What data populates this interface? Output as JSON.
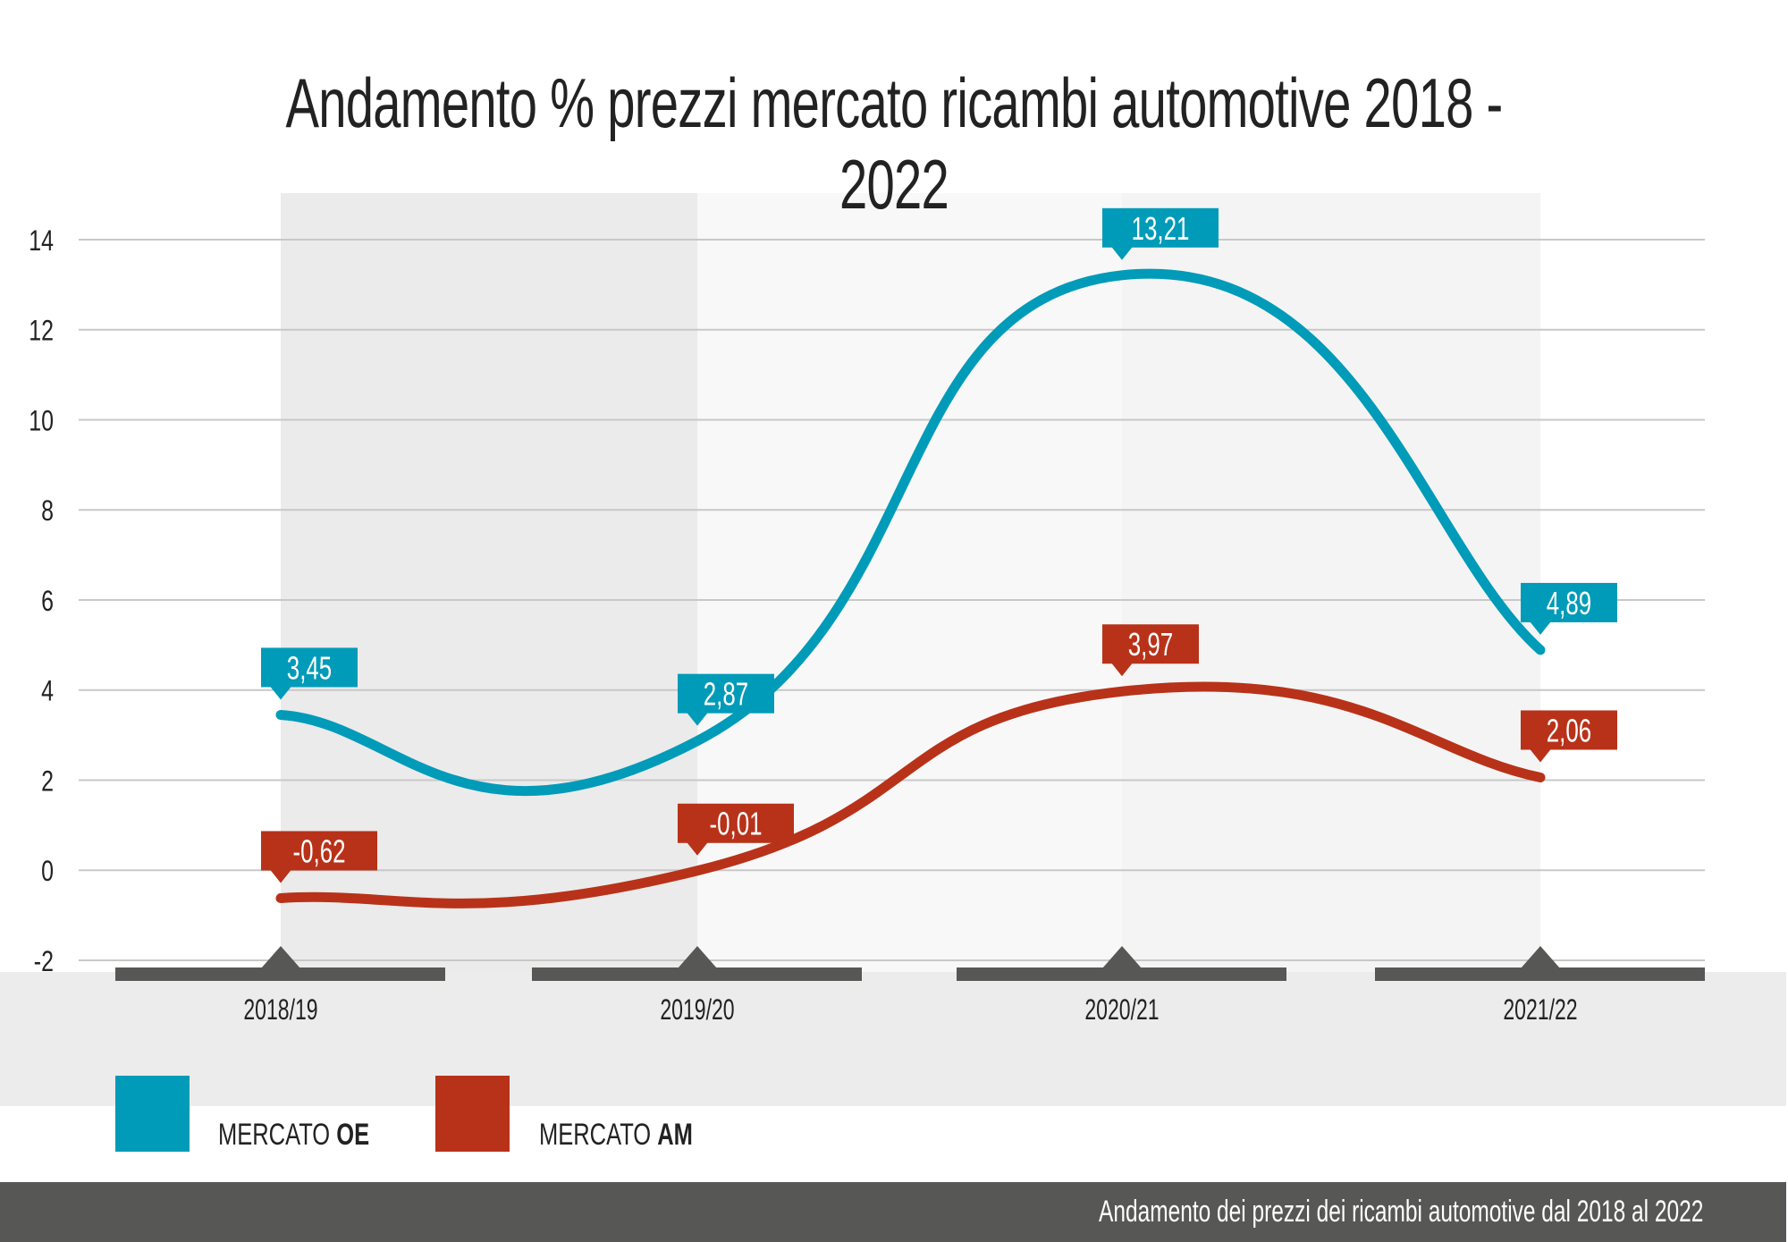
{
  "title": "Andamento % prezzi mercato ricambi automotive 2018 - 2022",
  "footer": "Andamento dei prezzi dei ricambi automotive dal 2018 al 2022",
  "colors": {
    "oe": "#009bb8",
    "am": "#b83219",
    "axis_bar": "#575756",
    "band_1": "#ebebeb",
    "band_2": "#f8f8f8",
    "band_3": "#f4f4f4",
    "grid": "#c8c8c8"
  },
  "legend": [
    {
      "prefix": "MERCATO ",
      "bold": "OE",
      "series": "oe"
    },
    {
      "prefix": "MERCATO ",
      "bold": "AM",
      "series": "am"
    }
  ],
  "chart_data": {
    "type": "line",
    "title": "Andamento % prezzi mercato ricambi automotive 2018 - 2022",
    "xlabel": "",
    "ylabel": "",
    "categories": [
      "2018/19",
      "2019/20",
      "2020/21",
      "2021/22"
    ],
    "yticks": [
      14,
      12,
      10,
      8,
      6,
      4,
      2,
      0,
      -2
    ],
    "ylim": [
      -2,
      14
    ],
    "grid": true,
    "smooth": true,
    "legend_position": "bottom-left",
    "series": [
      {
        "name": "MERCATO OE",
        "key": "oe",
        "values": [
          3.45,
          2.87,
          13.21,
          4.89
        ],
        "labels": [
          "3,45",
          "2,87",
          "13,21",
          "4,89"
        ]
      },
      {
        "name": "MERCATO AM",
        "key": "am",
        "values": [
          -0.62,
          -0.01,
          3.97,
          2.06
        ],
        "labels": [
          "-0,62",
          "-0,01",
          "3,97",
          "2,06"
        ]
      }
    ]
  }
}
